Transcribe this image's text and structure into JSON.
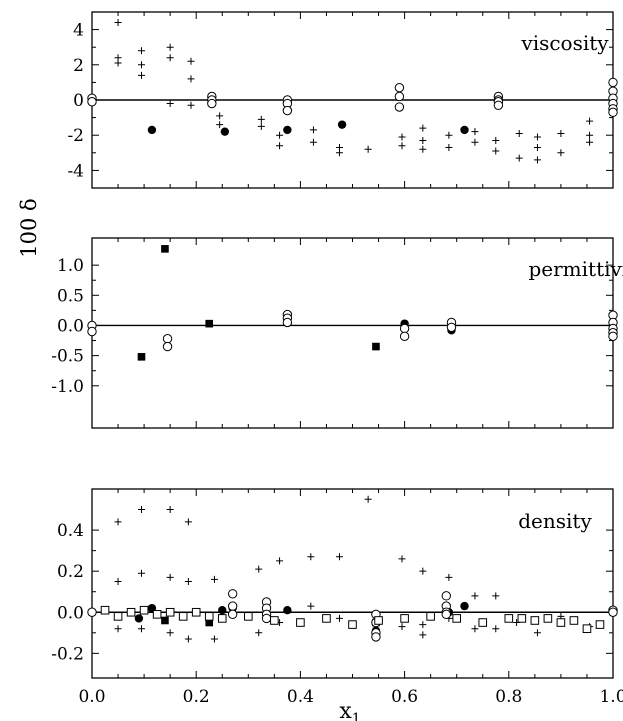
{
  "ylabel": "100 δ",
  "xlabel": "x",
  "xlabel_subscript": "1",
  "x_tick_labels": [
    "0.0",
    "0.2",
    "0.4",
    "0.6",
    "0.8",
    "1.0"
  ],
  "chart_data": [
    {
      "type": "scatter",
      "annotation": "viscosity",
      "xlim": [
        0,
        1
      ],
      "ylim": [
        -5,
        5
      ],
      "xticks": [
        0,
        0.2,
        0.4,
        0.6,
        0.8,
        1.0
      ],
      "yticks": [
        -4,
        -2,
        0,
        2,
        4
      ],
      "ytick_labels": [
        "-4",
        "-2",
        "0",
        "2",
        "4"
      ],
      "zero_line": true,
      "series": [
        {
          "marker": "plus",
          "points": [
            [
              0.05,
              4.4
            ],
            [
              0.05,
              2.4
            ],
            [
              0.05,
              2.1
            ],
            [
              0.095,
              2.8
            ],
            [
              0.095,
              2.0
            ],
            [
              0.095,
              1.4
            ],
            [
              0.15,
              3.0
            ],
            [
              0.15,
              2.4
            ],
            [
              0.15,
              -0.2
            ],
            [
              0.19,
              2.2
            ],
            [
              0.19,
              1.2
            ],
            [
              0.19,
              -0.3
            ],
            [
              0.245,
              -0.9
            ],
            [
              0.245,
              -1.4
            ],
            [
              0.325,
              -1.1
            ],
            [
              0.325,
              -1.5
            ],
            [
              0.36,
              -2.0
            ],
            [
              0.36,
              -2.6
            ],
            [
              0.425,
              -1.7
            ],
            [
              0.425,
              -2.4
            ],
            [
              0.475,
              -2.7
            ],
            [
              0.475,
              -3.0
            ],
            [
              0.53,
              -2.8
            ],
            [
              0.595,
              -2.1
            ],
            [
              0.595,
              -2.6
            ],
            [
              0.635,
              -1.6
            ],
            [
              0.635,
              -2.3
            ],
            [
              0.635,
              -2.8
            ],
            [
              0.685,
              -2.0
            ],
            [
              0.685,
              -2.7
            ],
            [
              0.735,
              -1.8
            ],
            [
              0.735,
              -2.4
            ],
            [
              0.775,
              -2.3
            ],
            [
              0.775,
              -2.9
            ],
            [
              0.82,
              -1.9
            ],
            [
              0.82,
              -3.3
            ],
            [
              0.855,
              -2.1
            ],
            [
              0.855,
              -2.7
            ],
            [
              0.855,
              -3.4
            ],
            [
              0.9,
              -1.9
            ],
            [
              0.9,
              -3.0
            ],
            [
              0.955,
              -1.2
            ],
            [
              0.955,
              -2.0
            ],
            [
              0.955,
              -2.4
            ]
          ]
        },
        {
          "marker": "filled-circle",
          "points": [
            [
              0.115,
              -1.7
            ],
            [
              0.255,
              -1.8
            ],
            [
              0.375,
              -1.7
            ],
            [
              0.48,
              -1.4
            ],
            [
              0.715,
              -1.7
            ]
          ]
        },
        {
          "marker": "open-circle",
          "points": [
            [
              0.0,
              0.1
            ],
            [
              0.0,
              -0.1
            ],
            [
              0.23,
              0.2
            ],
            [
              0.23,
              0.0
            ],
            [
              0.23,
              -0.2
            ],
            [
              0.375,
              0.0
            ],
            [
              0.375,
              -0.2
            ],
            [
              0.375,
              -0.6
            ],
            [
              0.59,
              0.7
            ],
            [
              0.59,
              0.2
            ],
            [
              0.59,
              -0.4
            ],
            [
              0.78,
              0.2
            ],
            [
              0.78,
              0.0
            ],
            [
              0.78,
              -0.1
            ],
            [
              0.78,
              -0.3
            ],
            [
              1.0,
              1.0
            ],
            [
              1.0,
              0.5
            ],
            [
              1.0,
              0.1
            ],
            [
              1.0,
              -0.2
            ],
            [
              1.0,
              -0.5
            ],
            [
              1.0,
              -0.7
            ]
          ]
        }
      ]
    },
    {
      "type": "scatter",
      "annotation": "permittivity",
      "xlim": [
        0,
        1
      ],
      "ylim": [
        -1.7,
        1.45
      ],
      "xticks": [
        0,
        0.2,
        0.4,
        0.6,
        0.8,
        1.0
      ],
      "yticks": [
        -1.0,
        -0.5,
        0.0,
        0.5,
        1.0
      ],
      "ytick_labels": [
        "-1.0",
        "-0.5",
        "0.0",
        "0.5",
        "1.0"
      ],
      "zero_line": true,
      "series": [
        {
          "marker": "filled-square",
          "points": [
            [
              0.095,
              -0.52
            ],
            [
              0.14,
              1.27
            ],
            [
              0.225,
              0.03
            ],
            [
              0.545,
              -0.35
            ]
          ]
        },
        {
          "marker": "filled-circle",
          "points": [
            [
              0.6,
              0.03
            ],
            [
              0.69,
              -0.08
            ]
          ]
        },
        {
          "marker": "open-circle",
          "points": [
            [
              0.0,
              0.0
            ],
            [
              0.0,
              -0.1
            ],
            [
              0.145,
              -0.22
            ],
            [
              0.145,
              -0.35
            ],
            [
              0.375,
              0.18
            ],
            [
              0.375,
              0.12
            ],
            [
              0.375,
              0.05
            ],
            [
              0.6,
              -0.05
            ],
            [
              0.6,
              -0.18
            ],
            [
              0.69,
              0.05
            ],
            [
              0.69,
              -0.03
            ],
            [
              1.0,
              0.17
            ],
            [
              1.0,
              0.05
            ],
            [
              1.0,
              -0.05
            ],
            [
              1.0,
              -0.12
            ],
            [
              1.0,
              -0.18
            ]
          ]
        }
      ]
    },
    {
      "type": "scatter",
      "annotation": "density",
      "xlim": [
        0,
        1
      ],
      "ylim": [
        -0.32,
        0.6
      ],
      "xticks": [
        0,
        0.2,
        0.4,
        0.6,
        0.8,
        1.0
      ],
      "yticks": [
        -0.2,
        0.0,
        0.2,
        0.4
      ],
      "ytick_labels": [
        "-0.2",
        "0.0",
        "0.2",
        "0.4"
      ],
      "zero_line": true,
      "series": [
        {
          "marker": "plus",
          "points": [
            [
              0.05,
              0.44
            ],
            [
              0.05,
              0.15
            ],
            [
              0.05,
              -0.08
            ],
            [
              0.095,
              0.5
            ],
            [
              0.095,
              0.19
            ],
            [
              0.095,
              -0.08
            ],
            [
              0.15,
              0.5
            ],
            [
              0.15,
              0.17
            ],
            [
              0.15,
              -0.1
            ],
            [
              0.185,
              0.44
            ],
            [
              0.185,
              0.15
            ],
            [
              0.185,
              -0.13
            ],
            [
              0.235,
              0.16
            ],
            [
              0.235,
              -0.13
            ],
            [
              0.32,
              0.21
            ],
            [
              0.32,
              -0.1
            ],
            [
              0.36,
              0.25
            ],
            [
              0.36,
              -0.05
            ],
            [
              0.42,
              0.27
            ],
            [
              0.42,
              0.03
            ],
            [
              0.475,
              0.27
            ],
            [
              0.475,
              -0.03
            ],
            [
              0.53,
              0.55
            ],
            [
              0.595,
              0.26
            ],
            [
              0.595,
              -0.07
            ],
            [
              0.635,
              0.2
            ],
            [
              0.635,
              -0.06
            ],
            [
              0.635,
              -0.11
            ],
            [
              0.685,
              0.17
            ],
            [
              0.685,
              -0.03
            ],
            [
              0.735,
              0.08
            ],
            [
              0.735,
              -0.08
            ],
            [
              0.775,
              0.08
            ],
            [
              0.775,
              -0.08
            ],
            [
              0.815,
              -0.05
            ],
            [
              0.855,
              -0.1
            ],
            [
              0.9,
              -0.02
            ],
            [
              0.955,
              -0.07
            ]
          ]
        },
        {
          "marker": "filled-circle",
          "points": [
            [
              0.09,
              -0.03
            ],
            [
              0.115,
              0.02
            ],
            [
              0.25,
              0.01
            ],
            [
              0.27,
              0.02
            ],
            [
              0.375,
              0.01
            ],
            [
              0.545,
              -0.09
            ],
            [
              0.685,
              0.0
            ],
            [
              0.715,
              0.03
            ]
          ]
        },
        {
          "marker": "filled-square",
          "points": [
            [
              0.14,
              -0.04
            ],
            [
              0.225,
              -0.05
            ],
            [
              0.545,
              -0.05
            ]
          ]
        },
        {
          "marker": "open-circle",
          "points": [
            [
              0.0,
              0.0
            ],
            [
              0.27,
              0.09
            ],
            [
              0.27,
              0.03
            ],
            [
              0.27,
              -0.01
            ],
            [
              0.335,
              0.05
            ],
            [
              0.335,
              0.02
            ],
            [
              0.335,
              -0.01
            ],
            [
              0.335,
              -0.03
            ],
            [
              0.545,
              -0.01
            ],
            [
              0.545,
              -0.05
            ],
            [
              0.545,
              -0.1
            ],
            [
              0.545,
              -0.12
            ],
            [
              0.68,
              0.08
            ],
            [
              0.68,
              0.03
            ],
            [
              0.68,
              0.0
            ],
            [
              0.68,
              -0.01
            ],
            [
              1.0,
              0.01
            ],
            [
              1.0,
              0.0
            ]
          ]
        },
        {
          "marker": "open-square",
          "points": [
            [
              0.025,
              0.01
            ],
            [
              0.05,
              -0.02
            ],
            [
              0.075,
              0.0
            ],
            [
              0.1,
              0.01
            ],
            [
              0.125,
              -0.01
            ],
            [
              0.15,
              0.0
            ],
            [
              0.175,
              -0.02
            ],
            [
              0.2,
              0.0
            ],
            [
              0.225,
              -0.02
            ],
            [
              0.25,
              -0.03
            ],
            [
              0.3,
              -0.02
            ],
            [
              0.35,
              -0.04
            ],
            [
              0.4,
              -0.05
            ],
            [
              0.45,
              -0.03
            ],
            [
              0.5,
              -0.06
            ],
            [
              0.55,
              -0.04
            ],
            [
              0.6,
              -0.03
            ],
            [
              0.65,
              -0.02
            ],
            [
              0.7,
              -0.03
            ],
            [
              0.75,
              -0.05
            ],
            [
              0.8,
              -0.03
            ],
            [
              0.825,
              -0.03
            ],
            [
              0.85,
              -0.04
            ],
            [
              0.875,
              -0.03
            ],
            [
              0.9,
              -0.05
            ],
            [
              0.925,
              -0.04
            ],
            [
              0.95,
              -0.08
            ],
            [
              0.975,
              -0.06
            ]
          ]
        }
      ]
    }
  ]
}
